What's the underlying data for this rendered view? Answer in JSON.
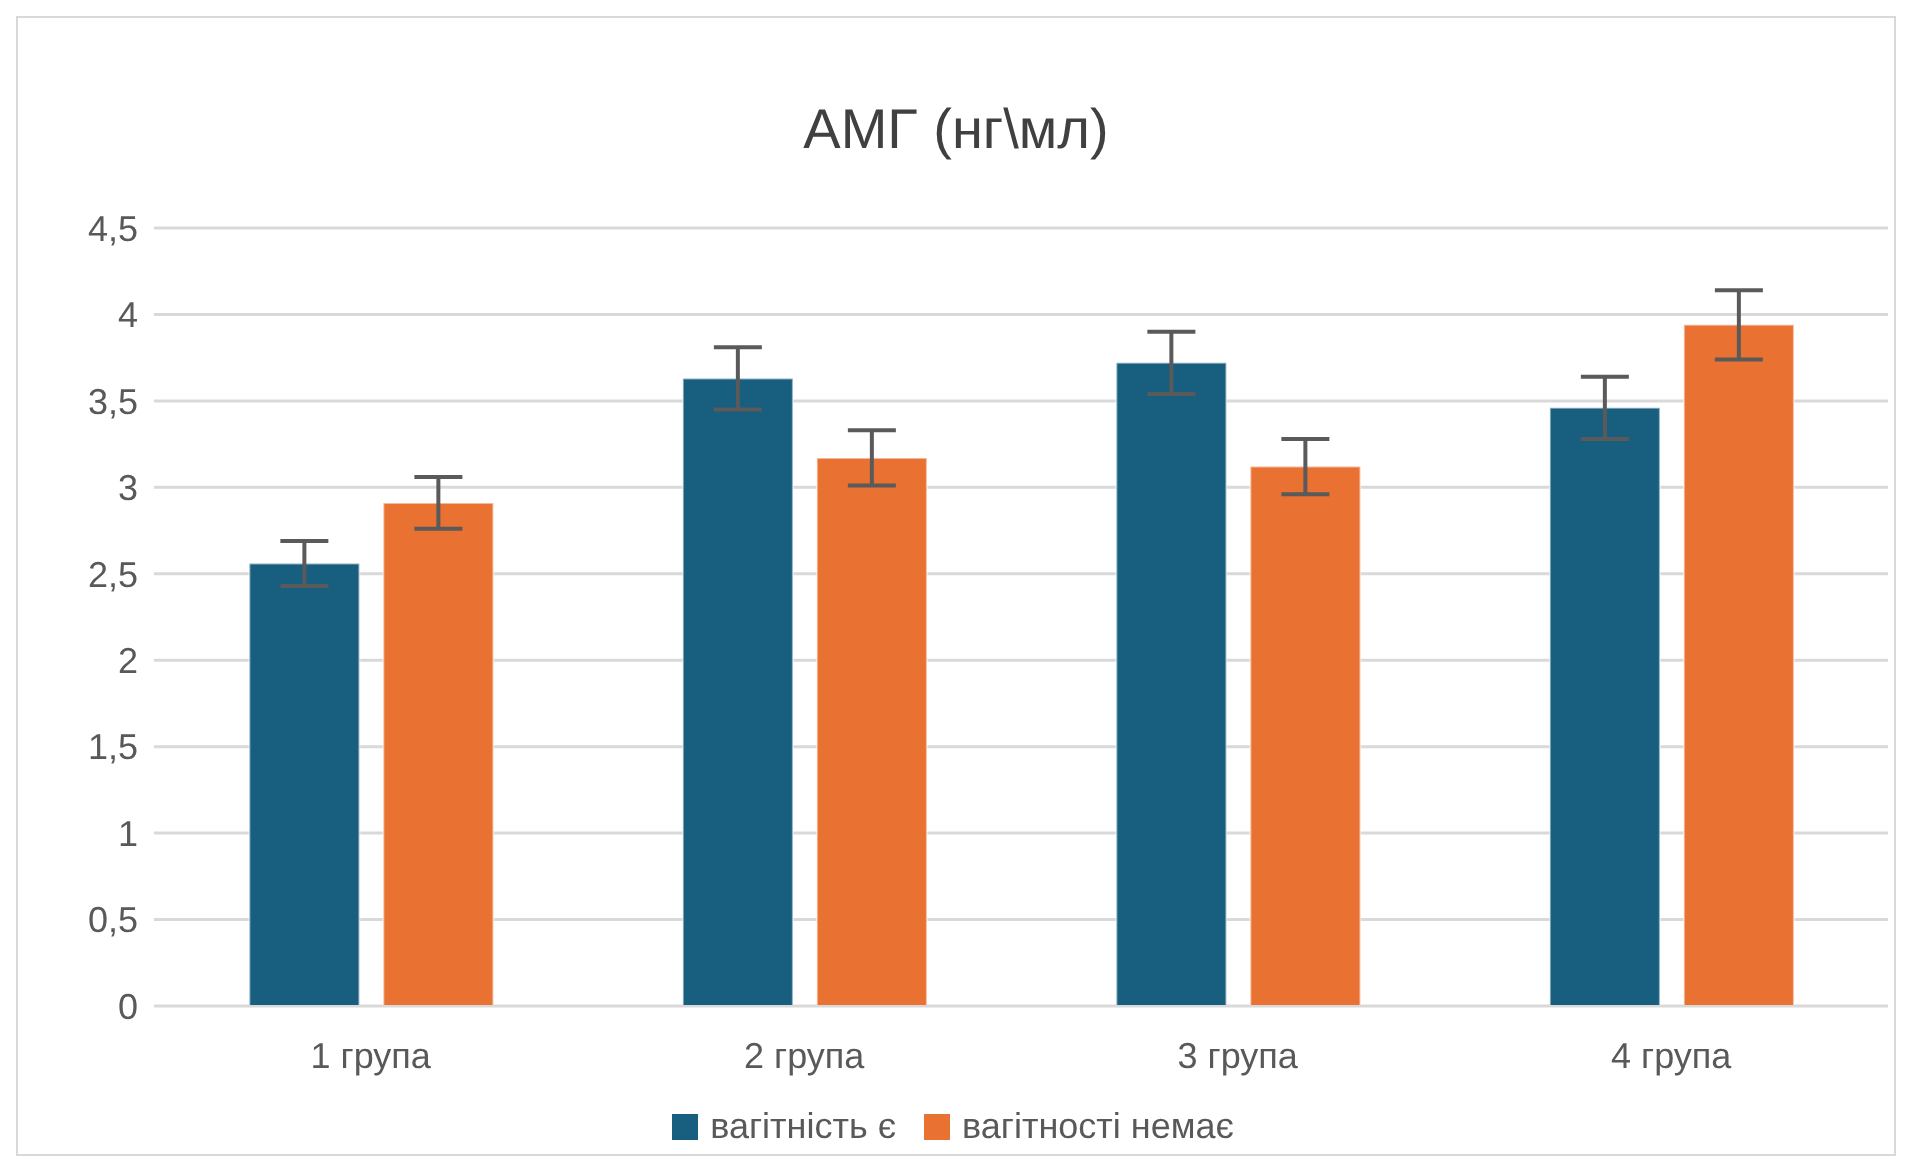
{
  "chart_data": {
    "type": "bar",
    "title": "АМГ (нг\\мл)",
    "categories": [
      "1 група",
      "2 група",
      "3 група",
      "4 група"
    ],
    "series": [
      {
        "name": "вагітність є",
        "color": "#175e7f",
        "values": [
          2.56,
          3.63,
          3.72,
          3.46
        ],
        "errors": [
          0.13,
          0.18,
          0.18,
          0.18
        ]
      },
      {
        "name": "вагітності немає",
        "color": "#e97132",
        "values": [
          2.91,
          3.17,
          3.12,
          3.94
        ],
        "errors": [
          0.15,
          0.16,
          0.16,
          0.2
        ]
      }
    ],
    "ylim": [
      0,
      4.5
    ],
    "yticks": [
      0,
      {
        "value": 0.5,
        "label": "0,5"
      },
      1,
      {
        "value": 1.5,
        "label": "1,5"
      },
      2,
      {
        "value": 2.5,
        "label": "2,5"
      },
      3,
      {
        "value": 3.5,
        "label": "3,5"
      },
      4,
      {
        "value": 4.5,
        "label": "4,5"
      }
    ],
    "grid": "y",
    "legend": "bottom"
  }
}
